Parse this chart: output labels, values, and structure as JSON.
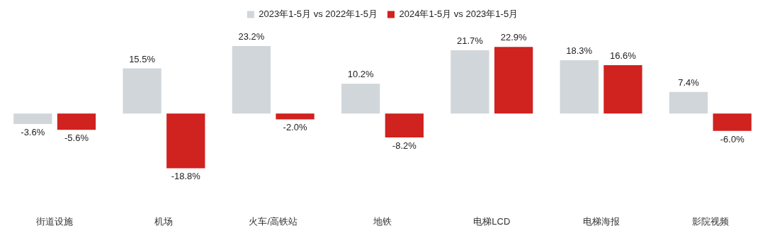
{
  "chart_data": {
    "type": "bar",
    "categories": [
      "街道设施",
      "机场",
      "火车/高铁站",
      "地铁",
      "电梯LCD",
      "电梯海报",
      "影院视频"
    ],
    "series": [
      {
        "name": "2023年1-5月 vs 2022年1-5月",
        "color": "#d0d6d9",
        "values": [
          -3.6,
          15.5,
          23.2,
          10.2,
          21.7,
          18.3,
          7.4
        ],
        "value_labels": [
          "-3.6%",
          "15.5%",
          "23.2%",
          "10.2%",
          "21.7%",
          "18.3%",
          "7.4%"
        ]
      },
      {
        "name": "2024年1-5月 vs 2023年1-5月",
        "color": "#d0221f",
        "values": [
          -5.6,
          -18.8,
          -2.0,
          -8.2,
          22.9,
          16.6,
          -6.0
        ],
        "value_labels": [
          "-5.6%",
          "-18.8%",
          "-2.0%",
          "-8.2%",
          "22.9%",
          "16.6%",
          "-6.0%"
        ]
      }
    ],
    "legend": "top"
  }
}
